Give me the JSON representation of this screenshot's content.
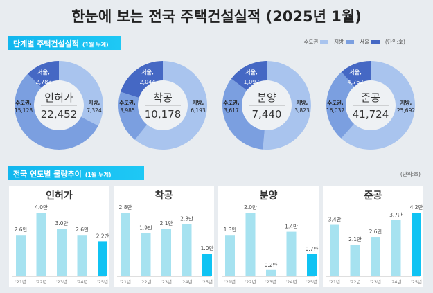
{
  "title": "한눈에 보는 전국 주택건설실적 (2025년 1월)",
  "section1": {
    "label": "단계별 주택건설실적",
    "sub": "(1월 누계)"
  },
  "legend": {
    "items": [
      {
        "label": "수도권",
        "color": "#a9c4ee"
      },
      {
        "label": "지방",
        "color": "#7b9fe0"
      },
      {
        "label": "서울",
        "color": "#4568c4"
      }
    ],
    "unit": "(단위:호)"
  },
  "section2": {
    "label": "전국 연도별 물량추이",
    "sub": "(1월 누계)",
    "unit": "(단위:호)"
  },
  "chart_data": [
    {
      "type": "pie",
      "title": "인허가",
      "total": "22,452",
      "slices": [
        {
          "label": "지방,",
          "value": 7324,
          "text": "7,324"
        },
        {
          "label": "수도권,",
          "value": 15128,
          "text": "15,128"
        },
        {
          "label": "서울,",
          "value": 2783,
          "text": "2,783"
        }
      ]
    },
    {
      "type": "pie",
      "title": "착공",
      "total": "10,178",
      "slices": [
        {
          "label": "지방,",
          "value": 6193,
          "text": "6,193"
        },
        {
          "label": "수도권,",
          "value": 3985,
          "text": "3,985"
        },
        {
          "label": "서울,",
          "value": 2044,
          "text": "2,044"
        }
      ]
    },
    {
      "type": "pie",
      "title": "분양",
      "total": "7,440",
      "slices": [
        {
          "label": "지방,",
          "value": 3823,
          "text": "3,823"
        },
        {
          "label": "수도권,",
          "value": 3617,
          "text": "3,617"
        },
        {
          "label": "서울,",
          "value": 1097,
          "text": "1,097"
        }
      ]
    },
    {
      "type": "pie",
      "title": "준공",
      "total": "41,724",
      "slices": [
        {
          "label": "지방,",
          "value": 25692,
          "text": "25,692"
        },
        {
          "label": "수도권,",
          "value": 16032,
          "text": "16,032"
        },
        {
          "label": "서울,",
          "value": 4762,
          "text": "4,762"
        }
      ]
    },
    {
      "type": "bar",
      "title": "인허가",
      "categories": [
        "'21년",
        "'22년",
        "'23년",
        "'24년",
        "'25년"
      ],
      "values": [
        2.6,
        4.0,
        3.0,
        2.6,
        2.2
      ],
      "labels": [
        "2.6만",
        "4.0만",
        "3.0만",
        "2.6만",
        "2.2만"
      ]
    },
    {
      "type": "bar",
      "title": "착공",
      "categories": [
        "'21년",
        "'22년",
        "'23년",
        "'24년",
        "'25년"
      ],
      "values": [
        2.8,
        1.9,
        2.1,
        2.3,
        1.0
      ],
      "labels": [
        "2.8만",
        "1.9만",
        "2.1만",
        "2.3만",
        "1.0만"
      ]
    },
    {
      "type": "bar",
      "title": "분양",
      "categories": [
        "'21년",
        "'22년",
        "'23년",
        "'24년",
        "'25년"
      ],
      "values": [
        1.3,
        2.0,
        0.2,
        1.4,
        0.7
      ],
      "labels": [
        "1.3만",
        "2.0만",
        "0.2만",
        "1.4만",
        "0.7만"
      ]
    },
    {
      "type": "bar",
      "title": "준공",
      "categories": [
        "'21년",
        "'22년",
        "'23년",
        "'24년",
        "'25년"
      ],
      "values": [
        3.4,
        2.1,
        2.6,
        3.7,
        4.2
      ],
      "labels": [
        "3.4만",
        "2.1만",
        "2.6만",
        "3.7만",
        "4.2만"
      ]
    }
  ],
  "colors": {
    "past_bar": "#a6e2f0",
    "current_bar": "#10c3f3",
    "metro": "#7b9fe0",
    "local": "#a9c4ee",
    "seoul": "#4568c4"
  }
}
